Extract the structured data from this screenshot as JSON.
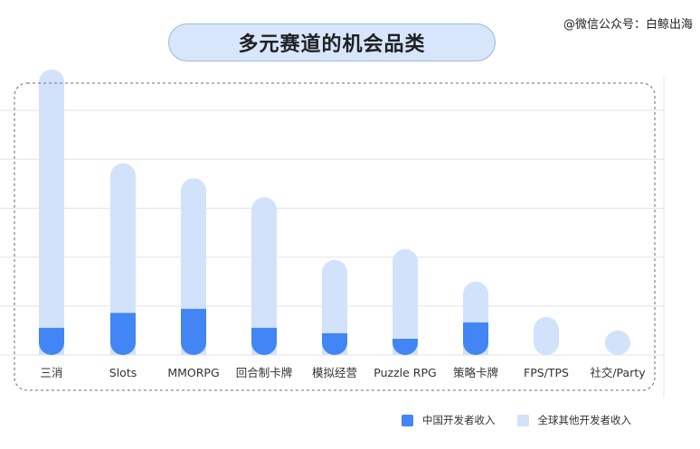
{
  "header": {
    "title": "多元赛道的机会品类",
    "watermark": "@微信公众号：白鲸出海"
  },
  "colors": {
    "china": "#4285f4",
    "global": "#d2e2fb",
    "grid": "#e4e4e4",
    "frame": "#8a8a8a"
  },
  "chart_data": {
    "type": "bar",
    "stacked": true,
    "title": "多元赛道的机会品类",
    "xlabel": "",
    "ylabel": "",
    "ylim": [
      0,
      100
    ],
    "grid": true,
    "legend_position": "bottom-right",
    "categories": [
      "三消",
      "Slots",
      "MMORPG",
      "回合制卡牌",
      "模拟经营",
      "Puzzle RPG",
      "策略卡牌",
      "FPS/TPS",
      "社交/Party"
    ],
    "series": [
      {
        "name": "中国开发者收入",
        "color": "#4285f4",
        "values": [
          10,
          15.5,
          17,
          10,
          8,
          6,
          12,
          0,
          0
        ]
      },
      {
        "name": "全球其他开发者收入",
        "color": "#d2e2fb",
        "values": [
          95,
          55,
          48,
          48,
          27,
          33,
          15,
          14,
          9
        ]
      }
    ]
  }
}
